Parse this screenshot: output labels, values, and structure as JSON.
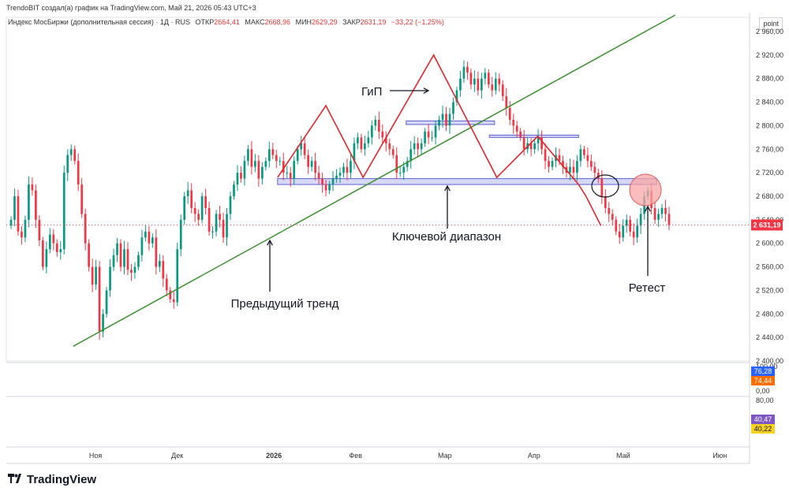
{
  "header": {
    "attribution": "TrendoBIT создал(а) график на TradingView.com, Май 21, 2026 05:43 UTC+3",
    "symbol": "Индекс МосБиржи (дополнительная сессия) · 1Д · RUS",
    "open_label": "ОТКР",
    "open_value": "2664,41",
    "high_label": "МАКС",
    "high_value": "2668,96",
    "low_label": "МИН",
    "low_value": "2629,29",
    "close_label": "ЗАКР",
    "close_value": "2631,19",
    "change": "−33,22 (−1,25%)"
  },
  "price_scale": {
    "unit_button": "point"
  },
  "brand": {
    "name": "TradingView"
  },
  "colors": {
    "up": "#089981",
    "down": "#f23645",
    "trend": "#3a8f2f",
    "pattern": "#e0262a",
    "zone_fill": "#c5c8f0",
    "zone_border": "#5b5fd6",
    "current_price_bg": "#f23645",
    "osc1": "#2962ff",
    "osc2": "#ff6d00",
    "osc3": "#7e57c2",
    "osc4": "#f7d21e"
  },
  "chart_data": {
    "type": "candlestick",
    "y_axis": {
      "min": 2400,
      "max": 2960,
      "ticks": [
        "2 960,00",
        "2 920,00",
        "2 880,00",
        "2 840,00",
        "2 800,00",
        "2 760,00",
        "2 720,00",
        "2 680,00",
        "2 640,00",
        "2 600,00",
        "2 560,00",
        "2 520,00",
        "2 480,00",
        "2 440,00",
        "2 400,00"
      ]
    },
    "x_axis": {
      "ticks": [
        "Ноя",
        "Дек",
        "2026",
        "Фев",
        "Мар",
        "Апр",
        "Май",
        "Июн"
      ]
    },
    "current_price": {
      "value": 2631.19,
      "label": "2 631,19"
    },
    "candles_close": [
      2640,
      2680,
      2620,
      2610,
      2640,
      2700,
      2690,
      2640,
      2605,
      2560,
      2590,
      2615,
      2600,
      2585,
      2590,
      2720,
      2750,
      2760,
      2740,
      2700,
      2650,
      2600,
      2560,
      2530,
      2560,
      2450,
      2480,
      2520,
      2560,
      2580,
      2600,
      2560,
      2590,
      2555,
      2550,
      2560,
      2580,
      2610,
      2620,
      2600,
      2610,
      2560,
      2570,
      2540,
      2520,
      2505,
      2500,
      2590,
      2640,
      2680,
      2690,
      2660,
      2650,
      2640,
      2680,
      2660,
      2620,
      2620,
      2650,
      2640,
      2610,
      2650,
      2680,
      2700,
      2720,
      2710,
      2740,
      2760,
      2730,
      2740,
      2710,
      2730,
      2740,
      2760,
      2750,
      2740,
      2740,
      2720,
      2720,
      2710,
      2740,
      2760,
      2770,
      2750,
      2730,
      2740,
      2720,
      2710,
      2700,
      2690,
      2700,
      2710,
      2715,
      2720,
      2730,
      2720,
      2740,
      2770,
      2780,
      2760,
      2770,
      2780,
      2800,
      2810,
      2790,
      2780,
      2770,
      2760,
      2750,
      2720,
      2720,
      2730,
      2740,
      2760,
      2770,
      2760,
      2770,
      2790,
      2780,
      2780,
      2800,
      2810,
      2820,
      2800,
      2820,
      2840,
      2860,
      2880,
      2900,
      2890,
      2870,
      2880,
      2860,
      2880,
      2890,
      2870,
      2860,
      2880,
      2870,
      2850,
      2830,
      2810,
      2800,
      2790,
      2780,
      2760,
      2770,
      2760,
      2770,
      2780,
      2760,
      2740,
      2730,
      2740,
      2750,
      2740,
      2730,
      2720,
      2730,
      2720,
      2740,
      2760,
      2750,
      2740,
      2730,
      2720,
      2710,
      2680,
      2660,
      2650,
      2640,
      2620,
      2610,
      2630,
      2640,
      2620,
      2610,
      2630,
      2650,
      2680,
      2690,
      2660,
      2640,
      2650,
      2660,
      2650,
      2631
    ],
    "trend_line": {
      "from": [
        0.09,
        2425
      ],
      "to": [
        0.9,
        2988
      ],
      "label": "Предыдущий тренд"
    },
    "zones": [
      {
        "x0": 0.365,
        "x1": 0.875,
        "y0": 2700,
        "y1": 2710,
        "label": "Ключевой диапазон"
      },
      {
        "x0": 0.538,
        "x1": 0.657,
        "y0": 2802,
        "y1": 2808
      },
      {
        "x0": 0.65,
        "x1": 0.77,
        "y0": 2780,
        "y1": 2784
      }
    ],
    "pattern_labels": [
      "ГиП",
      "Ретест"
    ],
    "oscillator1": {
      "ticks": [
        "100,00",
        "0,00"
      ],
      "values": [
        "76,28",
        "74,44"
      ]
    },
    "oscillator2": {
      "ticks": [
        "80,00"
      ],
      "values": [
        "40,47",
        "40,22"
      ]
    }
  }
}
